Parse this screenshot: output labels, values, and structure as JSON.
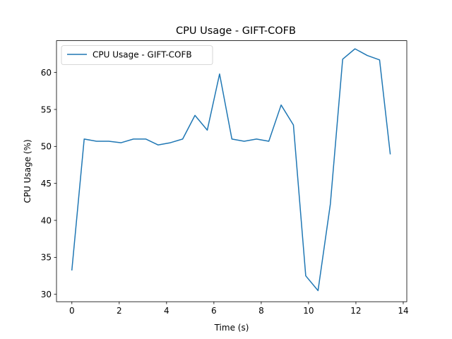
{
  "chart_data": {
    "type": "line",
    "title": "CPU Usage - GIFT-COFB",
    "xlabel": "Time (s)",
    "ylabel": "CPU Usage (%)",
    "xlim": [
      -0.65,
      14.15
    ],
    "ylim": [
      29.0,
      64.3
    ],
    "xticks": [
      0,
      2,
      4,
      6,
      8,
      10,
      12,
      14
    ],
    "yticks": [
      30,
      35,
      40,
      45,
      50,
      55,
      60
    ],
    "grid": false,
    "legend_position": "upper-left",
    "series": [
      {
        "name": "CPU Usage - GIFT-COFB",
        "color": "#1f77b4",
        "x": [
          0.0,
          0.52,
          1.04,
          1.56,
          2.08,
          2.6,
          3.12,
          3.64,
          4.16,
          4.68,
          5.2,
          5.72,
          6.24,
          6.76,
          7.28,
          7.8,
          8.32,
          8.84,
          9.36,
          9.88,
          10.4,
          10.92,
          11.44,
          11.96,
          12.48,
          13.0,
          13.45
        ],
        "y": [
          33.3,
          51.0,
          50.7,
          50.7,
          50.5,
          51.0,
          51.0,
          50.2,
          50.5,
          51.0,
          54.2,
          52.2,
          59.8,
          51.0,
          50.7,
          51.0,
          50.7,
          55.6,
          52.9,
          32.5,
          30.5,
          42.2,
          61.8,
          63.2,
          62.3,
          61.7,
          49.0
        ]
      }
    ]
  }
}
